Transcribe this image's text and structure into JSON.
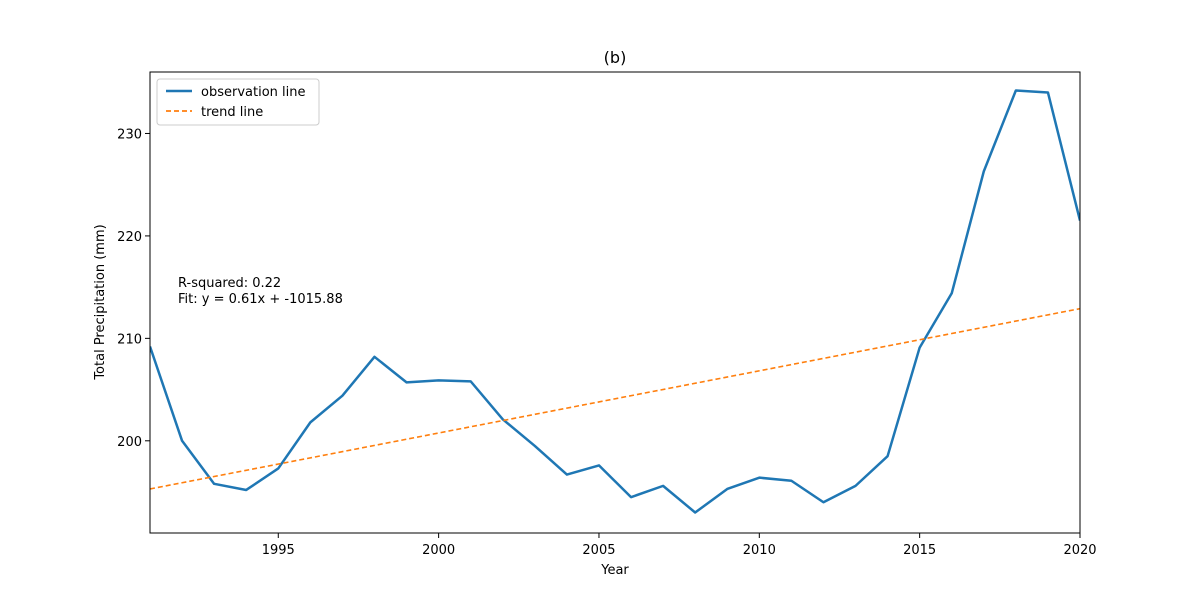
{
  "chart_data": {
    "type": "line",
    "title": "(b)",
    "xlabel": "Year",
    "ylabel": "Total Precipitation (mm)",
    "xlim": [
      1991,
      2020
    ],
    "ylim": [
      191,
      236
    ],
    "x_ticks": [
      1995,
      2000,
      2005,
      2010,
      2015,
      2020
    ],
    "y_ticks": [
      200,
      210,
      220,
      230
    ],
    "grid": false,
    "legend_position": "upper-left",
    "series": [
      {
        "name": "observation line",
        "style": "solid",
        "color": "#1f77b4",
        "x": [
          1991,
          1992,
          1993,
          1994,
          1995,
          1996,
          1997,
          1998,
          1999,
          2000,
          2001,
          2002,
          2003,
          2004,
          2005,
          2006,
          2007,
          2008,
          2009,
          2010,
          2011,
          2012,
          2013,
          2014,
          2015,
          2016,
          2017,
          2018,
          2019,
          2020
        ],
        "y": [
          209.2,
          200.0,
          195.8,
          195.2,
          197.3,
          201.8,
          204.4,
          208.2,
          205.7,
          205.9,
          205.8,
          202.1,
          199.5,
          196.7,
          197.6,
          194.5,
          195.6,
          193.0,
          195.3,
          196.4,
          196.1,
          194.0,
          195.6,
          198.5,
          209.1,
          214.4,
          226.3,
          234.2,
          234.0,
          221.5
        ]
      },
      {
        "name": "trend line",
        "style": "dashed",
        "color": "#ff7f0e",
        "x": [
          1991,
          2020
        ],
        "y": [
          195.3,
          212.9
        ]
      }
    ],
    "annotations": [
      "R-squared: 0.22",
      "Fit: y = 0.61x + -1015.88"
    ]
  }
}
